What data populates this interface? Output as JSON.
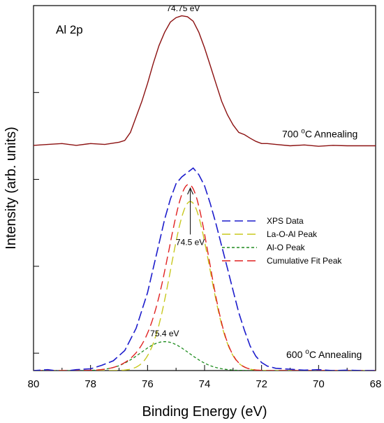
{
  "chart_data": {
    "type": "line",
    "panel_label": "Al 2p",
    "xlabel": "Binding Energy (eV)",
    "ylabel": "Intensity (arb. units)",
    "xlim": [
      80,
      68
    ],
    "x_reversed": true,
    "x_ticks": [
      80,
      78,
      76,
      74,
      72,
      70,
      68
    ],
    "ylim": [
      0,
      8.2
    ],
    "y_tick_labels_shown": false,
    "grid": false,
    "legend": {
      "position": "center-right",
      "entries": [
        {
          "name": "XPS Data",
          "color": "#1c1ccc",
          "dash": "long"
        },
        {
          "name": "La-O-Al Peak",
          "color": "#c8c81e",
          "dash": "long"
        },
        {
          "name": "Al-O Peak",
          "color": "#1e8c1e",
          "dash": "short"
        },
        {
          "name": "Cumulative Fit Peak",
          "color": "#e02020",
          "dash": "long"
        }
      ]
    },
    "conditions": [
      {
        "label_prefix": "700 ",
        "label_sup": "o",
        "label_suffix": "C Annealing",
        "baseline": 5.05
      },
      {
        "label_prefix": "600 ",
        "label_sup": "o",
        "label_suffix": "C Annealing",
        "baseline": 0.0
      }
    ],
    "series": [
      {
        "name": "700C Data",
        "color": "#8b1010",
        "x": [
          80,
          79.5,
          79,
          78.5,
          78,
          77.5,
          77,
          76.8,
          76.6,
          76.4,
          76.2,
          76,
          75.8,
          75.6,
          75.4,
          75.2,
          75,
          74.8,
          74.6,
          74.4,
          74.2,
          74,
          73.8,
          73.6,
          73.4,
          73.2,
          73,
          72.8,
          72.6,
          72.4,
          72.2,
          72,
          71.8,
          71.5,
          71,
          70.5,
          70,
          69.5,
          69,
          68.5,
          68
        ],
        "y": [
          5.06,
          5.08,
          5.1,
          5.06,
          5.1,
          5.08,
          5.13,
          5.17,
          5.35,
          5.7,
          6.05,
          6.45,
          6.9,
          7.3,
          7.6,
          7.83,
          7.93,
          7.97,
          7.95,
          7.85,
          7.6,
          7.25,
          6.85,
          6.45,
          6.05,
          5.75,
          5.52,
          5.35,
          5.3,
          5.22,
          5.15,
          5.1,
          5.1,
          5.08,
          5.05,
          5.07,
          5.04,
          5.06,
          5.05,
          5.05,
          5.05
        ]
      },
      {
        "name": "XPS Data",
        "color": "#1c1ccc",
        "x": [
          80,
          79.5,
          79,
          78.5,
          78,
          77.6,
          77.2,
          76.8,
          76.4,
          76,
          75.8,
          75.6,
          75.4,
          75.2,
          75,
          74.8,
          74.6,
          74.4,
          74.2,
          74,
          73.8,
          73.6,
          73.4,
          73.2,
          73,
          72.8,
          72.6,
          72.4,
          72.2,
          72,
          71.8,
          71.5,
          71,
          70.5,
          70,
          69.5,
          69,
          68.5,
          68
        ],
        "y": [
          0.0,
          0.02,
          -0.02,
          0.02,
          0.04,
          0.12,
          0.22,
          0.45,
          0.95,
          1.75,
          2.3,
          2.85,
          3.4,
          3.85,
          4.2,
          4.35,
          4.45,
          4.55,
          4.4,
          4.15,
          3.75,
          3.3,
          2.8,
          2.3,
          1.8,
          1.3,
          0.9,
          0.55,
          0.32,
          0.18,
          0.1,
          0.05,
          0.03,
          0.01,
          0.02,
          0.0,
          0.01,
          0.0,
          0.0
        ]
      },
      {
        "name": "La-O-Al Peak",
        "color": "#c8c81e",
        "center": 74.5,
        "height": 3.8,
        "sigma": 0.68,
        "offset": 0.0
      },
      {
        "name": "Al-O Peak",
        "color": "#1e8c1e",
        "center": 75.4,
        "height": 0.65,
        "sigma": 0.85,
        "offset": 0.0
      },
      {
        "name": "Cumulative Fit Peak",
        "color": "#e02020",
        "type": "sum_of_peaks"
      }
    ],
    "annotations": [
      {
        "text": "74.75 eV",
        "x": 74.75,
        "y": 8.15
      },
      {
        "text": "74.5 eV",
        "x": 74.5,
        "y": 2.9,
        "arrow_to_y": 4.1
      },
      {
        "text": "75.4 eV",
        "x": 75.4,
        "y": 0.85
      }
    ]
  }
}
